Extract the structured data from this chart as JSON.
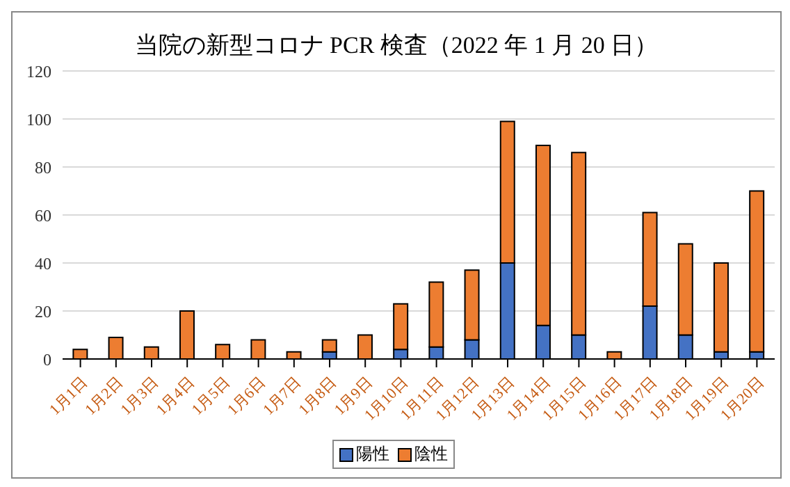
{
  "chart_data": {
    "type": "bar",
    "title": "当院の新型コロナ PCR 検査（2022 年 1 月 20 日）",
    "stacked": true,
    "categories": [
      "1月1日",
      "1月2日",
      "1月3日",
      "1月4日",
      "1月5日",
      "1月6日",
      "1月7日",
      "1月8日",
      "1月9日",
      "1月10日",
      "1月11日",
      "1月12日",
      "1月13日",
      "1月14日",
      "1月15日",
      "1月16日",
      "1月17日",
      "1月18日",
      "1月19日",
      "1月20日"
    ],
    "series": [
      {
        "name": "陽性",
        "color": "#4472c4",
        "values": [
          0,
          0,
          0,
          0,
          0,
          0,
          0,
          3,
          null,
          4,
          5,
          8,
          40,
          14,
          10,
          0,
          22,
          10,
          3,
          3
        ]
      },
      {
        "name": "陰性",
        "color": "#ed7d31",
        "values": [
          4,
          9,
          5,
          20,
          6,
          8,
          3,
          5,
          10,
          19,
          27,
          29,
          59,
          75,
          76,
          3,
          39,
          38,
          37,
          67
        ]
      }
    ],
    "ylim": [
      0,
      120
    ],
    "yticks": [
      0,
      20,
      40,
      60,
      80,
      100,
      120
    ],
    "grid": "y",
    "legend": "bottom"
  }
}
